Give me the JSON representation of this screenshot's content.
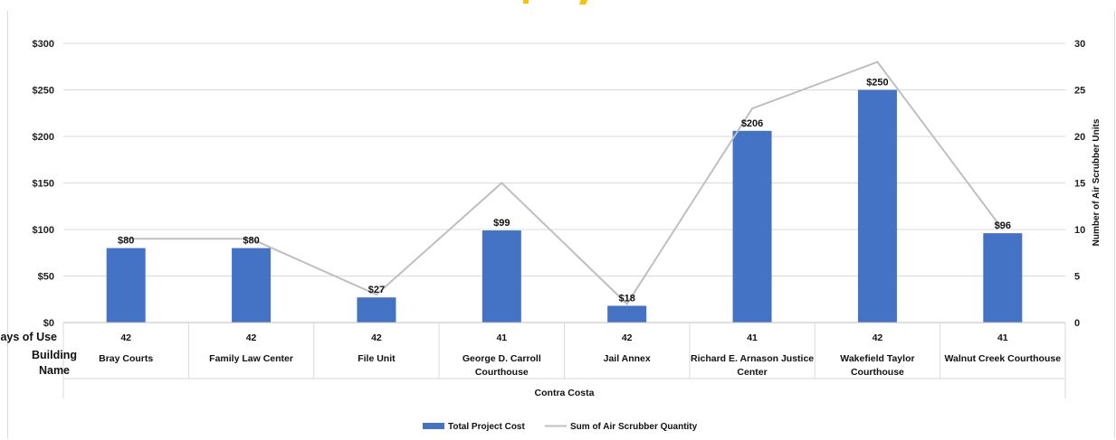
{
  "chart_data": {
    "type": "bar",
    "group_label": "Contra Costa",
    "row_headers": [
      "Days of Use",
      "Building Name"
    ],
    "categories": [
      {
        "building": [
          "Bray Courts"
        ],
        "days": "42"
      },
      {
        "building": [
          "Family Law Center"
        ],
        "days": "42"
      },
      {
        "building": [
          "File Unit"
        ],
        "days": "42"
      },
      {
        "building": [
          "George D. Carroll",
          "Courthouse"
        ],
        "days": "41"
      },
      {
        "building": [
          "Jail Annex"
        ],
        "days": "42"
      },
      {
        "building": [
          "Richard E. Arnason Justice",
          "Center"
        ],
        "days": "41"
      },
      {
        "building": [
          "Wakefield Taylor",
          "Courthouse"
        ],
        "days": "42"
      },
      {
        "building": [
          "Walnut Creek Courthouse"
        ],
        "days": "41"
      }
    ],
    "series": [
      {
        "name": "Total Project Cost",
        "type": "bar",
        "axis": "left",
        "values": [
          80,
          80,
          27,
          99,
          18,
          206,
          250,
          96
        ],
        "labels": [
          "$80",
          "$80",
          "$27",
          "$99",
          "$18",
          "$206",
          "$250",
          "$96"
        ],
        "color": "#4472c4"
      },
      {
        "name": "Sum of Air Scrubber Quantity",
        "type": "line",
        "axis": "right",
        "values": [
          9,
          9,
          3,
          15,
          2,
          23,
          28,
          10
        ],
        "color": "#bfbfbf"
      }
    ],
    "y_left": {
      "range": [
        0,
        300
      ],
      "ticks": [
        "$0",
        "$50",
        "$100",
        "$150",
        "$200",
        "$250",
        "$300"
      ]
    },
    "y_right": {
      "range": [
        0,
        30
      ],
      "ticks": [
        "0",
        "5",
        "10",
        "15",
        "20",
        "25",
        "30"
      ],
      "label": "Number of Air Scrubber Units"
    },
    "grid": true,
    "legend": "bottom-center",
    "title_color": "#f5c400"
  }
}
